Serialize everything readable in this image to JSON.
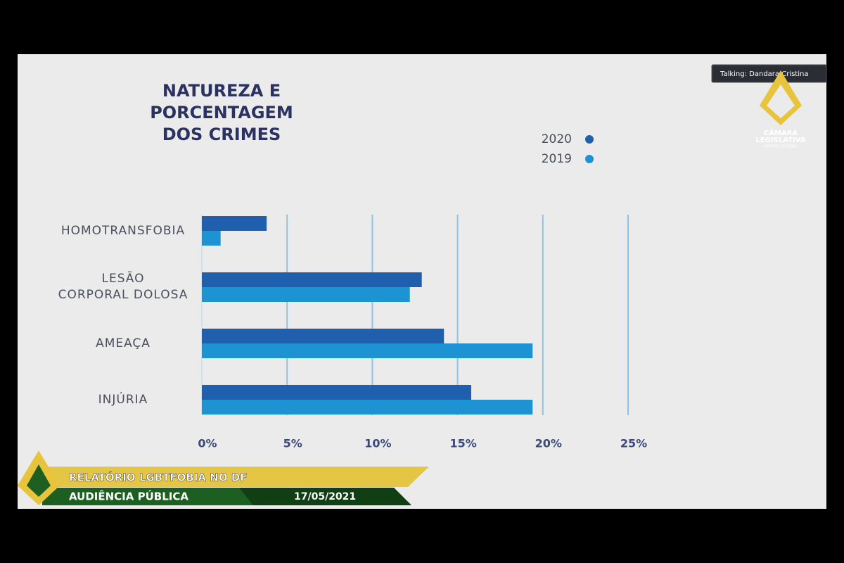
{
  "chart_data": {
    "type": "bar",
    "orientation": "horizontal",
    "title": "NATUREZA E\nPORCENTAGEM\nDOS CRIMES",
    "categories": [
      "HOMOTRANSFOBIA",
      "LESÃO\nCORPORAL DOLOSA",
      "AMEAÇA",
      "INJÚRIA"
    ],
    "series": [
      {
        "name": "2020",
        "color": "#1f5fae",
        "values": [
          3.8,
          12.9,
          14.2,
          15.8
        ]
      },
      {
        "name": "2019",
        "color": "#1e93d3",
        "values": [
          1.1,
          12.2,
          19.4,
          19.4
        ]
      }
    ],
    "xlim": [
      0,
      25
    ],
    "xticks": [
      {
        "value": 0,
        "label": "0%"
      },
      {
        "value": 5,
        "label": "5%"
      },
      {
        "value": 10,
        "label": "10%"
      },
      {
        "value": 15,
        "label": "15%"
      },
      {
        "value": 20,
        "label": "20%"
      },
      {
        "value": 25,
        "label": "25%"
      }
    ],
    "grid": true,
    "legend": "upper right"
  },
  "overlay": {
    "talking": "Talking: Dandara Cristina",
    "logo_lines": [
      "CÂMARA",
      "LEGISLATIVA",
      "DISTRITO FEDERAL"
    ],
    "banner_title": "RELATÓRIO LGBTFOBIA NO DF",
    "banner_subtitle": "AUDIÊNCIA PÚBLICA",
    "date": "17/05/2021"
  }
}
